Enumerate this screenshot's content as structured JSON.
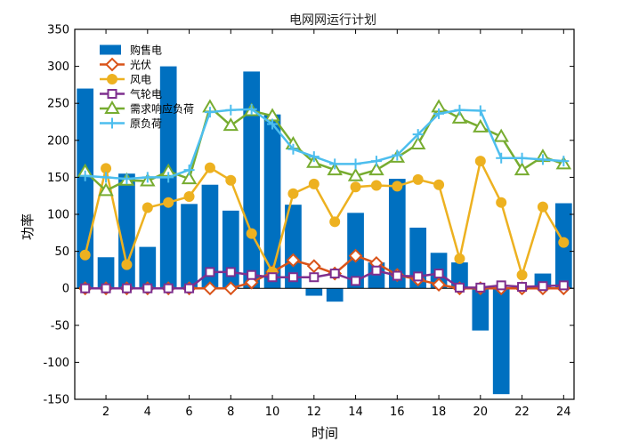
{
  "chart_data": {
    "type": "bar",
    "title": "电网网运行计划",
    "xlabel": "时间",
    "ylabel": "功率",
    "xlim": [
      0.5,
      24.5
    ],
    "ylim": [
      -150,
      350
    ],
    "xticks": [
      2,
      4,
      6,
      8,
      10,
      12,
      14,
      16,
      18,
      20,
      22,
      24
    ],
    "yticks": [
      -150,
      -100,
      -50,
      0,
      50,
      100,
      150,
      200,
      250,
      300,
      350
    ],
    "x": [
      1,
      2,
      3,
      4,
      5,
      6,
      7,
      8,
      9,
      10,
      11,
      12,
      13,
      14,
      15,
      16,
      17,
      18,
      19,
      20,
      21,
      22,
      23,
      24
    ],
    "legend_position": "top-left",
    "series": [
      {
        "name": "购售电",
        "kind": "bar",
        "color": "#0070C0",
        "values": [
          270,
          42,
          155,
          56,
          300,
          114,
          140,
          105,
          293,
          235,
          113,
          -10,
          -18,
          102,
          35,
          148,
          82,
          48,
          35,
          -57,
          -143,
          0,
          20,
          115
        ]
      },
      {
        "name": "光伏",
        "kind": "line",
        "marker": "diamond",
        "color": "#D95319",
        "values": [
          0,
          0,
          0,
          0,
          0,
          0,
          0,
          0,
          8,
          22,
          38,
          30,
          20,
          44,
          34,
          18,
          12,
          5,
          0,
          0,
          0,
          0,
          0,
          0
        ]
      },
      {
        "name": "风电",
        "kind": "line",
        "marker": "circle",
        "color": "#EDB120",
        "values": [
          45,
          162,
          32,
          109,
          116,
          124,
          163,
          146,
          74,
          22,
          128,
          141,
          90,
          137,
          139,
          138,
          147,
          140,
          40,
          172,
          116,
          18,
          110,
          62
        ]
      },
      {
        "name": "气轮电",
        "kind": "line",
        "marker": "square",
        "color": "#7E2F8E",
        "values": [
          0,
          0,
          0,
          0,
          0,
          0,
          22,
          22,
          18,
          15,
          15,
          15,
          20,
          10,
          24,
          17,
          16,
          20,
          1,
          1,
          4,
          2,
          3,
          4
        ]
      },
      {
        "name": "需求响应负荷",
        "kind": "line",
        "marker": "triangle",
        "color": "#77AC30",
        "values": [
          158,
          132,
          146,
          145,
          158,
          148,
          245,
          220,
          240,
          233,
          195,
          170,
          160,
          152,
          160,
          177,
          195,
          245,
          230,
          218,
          205,
          160,
          178,
          168
        ]
      },
      {
        "name": "原负荷",
        "kind": "line",
        "marker": "plus",
        "color": "#4DBEEE",
        "values": [
          152,
          150,
          148,
          150,
          150,
          160,
          238,
          241,
          242,
          222,
          188,
          178,
          168,
          168,
          172,
          180,
          208,
          236,
          241,
          240,
          176,
          176,
          174,
          172
        ]
      }
    ]
  }
}
